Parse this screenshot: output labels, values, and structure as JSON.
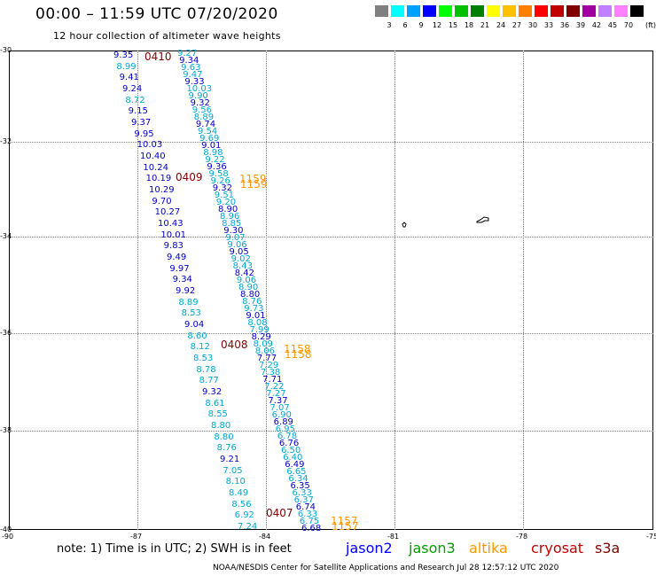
{
  "title": "00:00 – 11:59 UTC 07/20/2020",
  "subtitle": "12 hour collection of altimeter wave heights",
  "scale": {
    "unit": "(ft)",
    "bins": [
      {
        "label": "3",
        "color": "#808080"
      },
      {
        "label": "6",
        "color": "#00ffff"
      },
      {
        "label": "9",
        "color": "#00a0ff"
      },
      {
        "label": "12",
        "color": "#0000ff"
      },
      {
        "label": "15",
        "color": "#00ff00"
      },
      {
        "label": "18",
        "color": "#00c000"
      },
      {
        "label": "21",
        "color": "#008000"
      },
      {
        "label": "24",
        "color": "#ffff00"
      },
      {
        "label": "27",
        "color": "#ffc000"
      },
      {
        "label": "30",
        "color": "#ff8000"
      },
      {
        "label": "33",
        "color": "#ff0000"
      },
      {
        "label": "36",
        "color": "#c00000"
      },
      {
        "label": "39",
        "color": "#800000"
      },
      {
        "label": "42",
        "color": "#a000a0"
      },
      {
        "label": "45",
        "color": "#c080ff"
      },
      {
        "label": "70",
        "color": "#ff80ff"
      },
      {
        "label": "",
        "color": "#000000"
      }
    ]
  },
  "axes": {
    "lat_labels": [
      "-30",
      "-32",
      "-34",
      "-36",
      "-38",
      "-40"
    ],
    "lon_labels": [
      "-90",
      "-87",
      "-84",
      "-81",
      "-78",
      "-75"
    ]
  },
  "tracks": [
    {
      "name": "left-track",
      "values": [
        "9.35",
        "8.99",
        "9.41",
        "9.24",
        "8.72",
        "9.15",
        "9.37",
        "9.95",
        "10.03",
        "10.40",
        "10.24",
        "10.19",
        "10.29",
        "9.70",
        "10.27",
        "10.43",
        "10.01",
        "9.83",
        "9.49",
        "9.97",
        "9.34",
        "9.92",
        "8.89",
        "8.53",
        "9.04",
        "8.60",
        "8.12",
        "8.53",
        "8.78",
        "8.77",
        "9.32",
        "8.61",
        "8.55",
        "8.80",
        "8.80",
        "8.76",
        "9.21",
        "7.05",
        "8.10",
        "8.49",
        "8.56",
        "6.92",
        "7.24"
      ],
      "colors": [
        "#0000c8",
        "#00a8d0",
        "#0000c8",
        "#0000c8",
        "#00a8d0",
        "#0000c8",
        "#0000c8",
        "#0000c8",
        "#0000c8",
        "#0000c8",
        "#0000c8",
        "#0000c8",
        "#0000c8",
        "#0000c8",
        "#0000c8",
        "#0000c8",
        "#0000c8",
        "#0000c8",
        "#0000c8",
        "#0000c8",
        "#0000c8",
        "#0000c8",
        "#00a8d0",
        "#00a8d0",
        "#0000c8",
        "#00a8d0",
        "#00a8d0",
        "#00a8d0",
        "#00a8d0",
        "#00a8d0",
        "#0000c8",
        "#00a8d0",
        "#00a8d0",
        "#00a8d0",
        "#00a8d0",
        "#00a8d0",
        "#0000c8",
        "#00a8d0",
        "#00a8d0",
        "#00a8d0",
        "#00a8d0",
        "#00a8d0",
        "#00a8d0"
      ]
    },
    {
      "name": "right-track",
      "values": [
        "9.27",
        "9.34",
        "9.63",
        "9.47",
        "9.33",
        "10.03",
        "9.90",
        "9.32",
        "9.56",
        "8.89",
        "9.74",
        "9.54",
        "9.69",
        "9.01",
        "8.98",
        "9.22",
        "9.36",
        "9.58",
        "9.26",
        "9.32",
        "9.51",
        "9.20",
        "8.90",
        "8.96",
        "8.85",
        "9.30",
        "9.07",
        "9.06",
        "9.05",
        "9.02",
        "8.43",
        "8.42",
        "9.06",
        "8.90",
        "8.80",
        "8.76",
        "9.73",
        "9.01",
        "8.08",
        "7.99",
        "8.29",
        "8.09",
        "8.06",
        "7.77",
        "7.29",
        "7.38",
        "7.71",
        "7.22",
        "7.27",
        "7.37",
        "7.07",
        "6.90",
        "6.89",
        "6.95",
        "6.78",
        "6.76",
        "6.50",
        "6.40",
        "6.49",
        "6.65",
        "6.34",
        "6.35",
        "6.33",
        "6.37",
        "6.74",
        "6.33",
        "6.75",
        "6.68"
      ]
    }
  ],
  "passes": [
    {
      "label": "0410",
      "color": "#800000"
    },
    {
      "label": "0409",
      "color": "#800000"
    },
    {
      "label": "0408",
      "color": "#800000"
    },
    {
      "label": "0407",
      "color": "#800000"
    },
    {
      "label": "1159",
      "color": "#ff9900"
    },
    {
      "label": "1158",
      "color": "#ff9900"
    },
    {
      "label": "1157",
      "color": "#ff9900"
    }
  ],
  "note": "note:  1) Time is in UTC;  2) SWH is in feet",
  "satellites": [
    {
      "label": "jason2",
      "color": "#0000ff"
    },
    {
      "label": "jason3",
      "color": "#00a000"
    },
    {
      "label": "altika",
      "color": "#ff9900"
    },
    {
      "label": "cryosat",
      "color": "#c00000"
    },
    {
      "label": "s3a",
      "color": "#800000"
    }
  ],
  "footer": "NOAA/NESDIS Center for Satellite Applications and Research    Jul 28 12:57:12 UTC 2020"
}
